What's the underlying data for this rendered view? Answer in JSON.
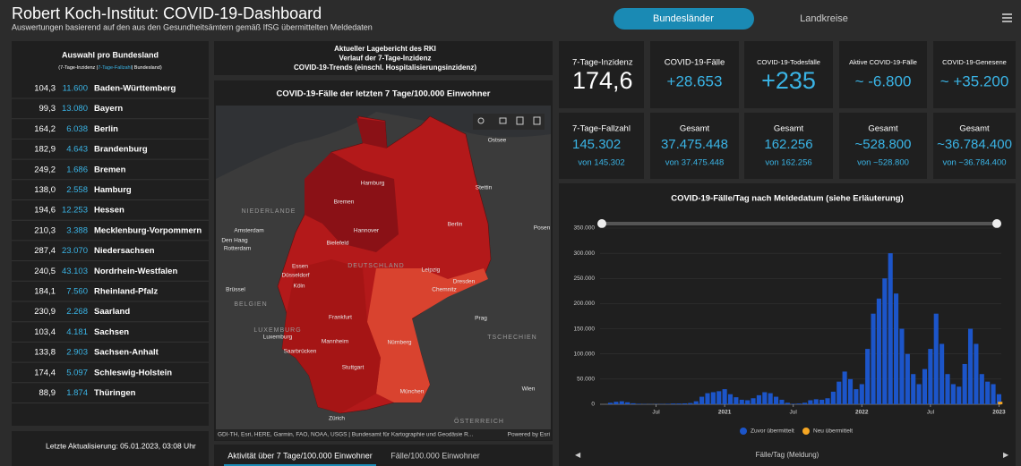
{
  "header": {
    "title": "Robert Koch-Institut: COVID-19-Dashboard",
    "subtitle": "Auswertungen basierend auf den aus den Gesundheitsämtern gemäß IfSG übermittelten Meldedaten",
    "tabs": [
      "Bundesländer",
      "Landkreise"
    ]
  },
  "states": {
    "title": "Auswahl pro Bundesland",
    "legend": [
      "(7-Tage-Inzidenz |",
      "7-Tage-Fallzahl",
      "| Bundesland)"
    ],
    "rows": [
      [
        "104,3",
        "11.600",
        "Baden-Württemberg"
      ],
      [
        "99,3",
        "13.080",
        "Bayern"
      ],
      [
        "164,2",
        "6.038",
        "Berlin"
      ],
      [
        "182,9",
        "4.643",
        "Brandenburg"
      ],
      [
        "249,2",
        "1.686",
        "Bremen"
      ],
      [
        "138,0",
        "2.558",
        "Hamburg"
      ],
      [
        "194,6",
        "12.253",
        "Hessen"
      ],
      [
        "210,3",
        "3.388",
        "Mecklenburg-Vorpommern"
      ],
      [
        "287,4",
        "23.070",
        "Niedersachsen"
      ],
      [
        "240,5",
        "43.103",
        "Nordrhein-Westfalen"
      ],
      [
        "184,1",
        "7.560",
        "Rheinland-Pfalz"
      ],
      [
        "230,9",
        "2.268",
        "Saarland"
      ],
      [
        "103,4",
        "4.181",
        "Sachsen"
      ],
      [
        "133,8",
        "2.903",
        "Sachsen-Anhalt"
      ],
      [
        "174,4",
        "5.097",
        "Schleswig-Holstein"
      ],
      [
        "88,9",
        "1.874",
        "Thüringen"
      ]
    ],
    "last_update": "Letzte Aktualisierung: 05.01.2023, 03:08 Uhr"
  },
  "links": [
    "Aktueller Lagebericht des RKI",
    "Verlauf der 7-Tage-Inzidenz",
    "COVID-19-Trends (einschl. Hospitalisierungsinzidenz)"
  ],
  "map": {
    "title": "COVID-19-Fälle der letzten 7 Tage/100.000 Einwohner",
    "labels": [
      "Ostsee",
      "Hamburg",
      "Stettin",
      "NIEDERLANDE",
      "Bremen",
      "Berlin",
      "Amsterdam",
      "Den Haag",
      "Rotterdam",
      "Hannover",
      "Posen",
      "Bielefeld",
      "DEUTSCHLAND",
      "Essen",
      "Düsseldorf",
      "Leipzig",
      "Köln",
      "Dresden",
      "Chemnitz",
      "Brüssel",
      "BELGIEN",
      "Prag",
      "Frankfurt",
      "LUXEMBURG",
      "Luxemburg",
      "TSCHECHIEN",
      "Mannheim",
      "Nürnberg",
      "Saarbrücken",
      "Stuttgart",
      "Wien",
      "München",
      "Zürich",
      "ÖSTERREICH"
    ],
    "attribution": "GDI-TH, Esri, HERE, Garmin, FAO, NOAA, USGS | Bundesamt für Kartographie und Geodäsie R...",
    "powered": "Powered by Esri",
    "tabs": [
      "Aktivität über 7 Tage/100.000 Einwohner",
      "Fälle/100.000 Einwohner"
    ]
  },
  "kpis": [
    {
      "label": "7-Tage-Inzidenz",
      "value": "174,6"
    },
    {
      "label": "COVID-19-Fälle",
      "value": "+28.653"
    },
    {
      "label": "COVID-19-Todesfälle",
      "value": "+235"
    },
    {
      "label": "Aktive COVID-19-Fälle",
      "value": "~ -6.800"
    },
    {
      "label": "COVID-19-Genesene",
      "value": "~ +35.200"
    },
    {
      "label": "7-Tage-Fallzahl",
      "value": "145.302",
      "sub": "von 145.302"
    },
    {
      "label": "Gesamt",
      "value": "37.475.448",
      "sub": "von 37.475.448"
    },
    {
      "label": "Gesamt",
      "value": "162.256",
      "sub": "von 162.256"
    },
    {
      "label": "Gesamt",
      "value": "~528.800",
      "sub": "von ~528.800"
    },
    {
      "label": "Gesamt",
      "value": "~36.784.400",
      "sub": "von ~36.784.400"
    }
  ],
  "chart_data": {
    "type": "bar",
    "title": "COVID-19-Fälle/Tag nach Meldedatum (siehe Erläuterung)",
    "x_label": "Fälle/Tag (Meldung)",
    "grid": true,
    "x": [
      2,
      2.5,
      3,
      3.5,
      4,
      4.5,
      5,
      5.5,
      6,
      6.5,
      7,
      7.5,
      8,
      8.5,
      9,
      9.5,
      10,
      10.5,
      11,
      11.5,
      12,
      12.5,
      13,
      13.5,
      14,
      14.5,
      15,
      15.5,
      16,
      16.5,
      17,
      17.5,
      18,
      18.5,
      19,
      19.5,
      20,
      20.5,
      21,
      21.5,
      22,
      22.5,
      23,
      23.5,
      24,
      24.5,
      25,
      25.5,
      26,
      26.5,
      27,
      27.5,
      28,
      28.5,
      29,
      29.5,
      30,
      30.5,
      31,
      31.5,
      32,
      32.5,
      33,
      33.5,
      34,
      34.5,
      35,
      35.5,
      36
    ],
    "xlim": [
      1.1,
      36.2
    ],
    "xticks": [
      {
        "value": 6,
        "label": "Jul"
      },
      {
        "value": 12,
        "label": "2021"
      },
      {
        "value": 18,
        "label": "Jul"
      },
      {
        "value": 24,
        "label": "2022"
      },
      {
        "value": 30,
        "label": "Jul"
      },
      {
        "value": 36,
        "label": "2023"
      }
    ],
    "ylim": [
      0,
      350000
    ],
    "yticks": [
      0,
      {
        "value": 50000,
        "label": "50.000"
      },
      {
        "value": 100000,
        "label": "100.000"
      },
      {
        "value": 150000,
        "label": "150.000"
      },
      {
        "value": 200000,
        "label": "200.000"
      },
      {
        "value": 250000,
        "label": "250.000"
      },
      {
        "value": 300000,
        "label": "300.000"
      },
      {
        "value": 350000,
        "label": "350.000"
      }
    ],
    "series": [
      {
        "name": "Zuvor übermittelt",
        "color": "#1c55c9",
        "values": [
          3000,
          5000,
          6000,
          4000,
          2000,
          1000,
          600,
          500,
          500,
          600,
          900,
          1500,
          1500,
          1800,
          2500,
          6000,
          15000,
          22000,
          24000,
          26000,
          30000,
          20000,
          14000,
          9000,
          8000,
          12000,
          18000,
          24000,
          22000,
          15000,
          9000,
          3000,
          1000,
          1500,
          3000,
          8000,
          10000,
          9000,
          12000,
          25000,
          45000,
          65000,
          50000,
          30000,
          40000,
          110000,
          180000,
          210000,
          250000,
          300000,
          220000,
          150000,
          100000,
          60000,
          40000,
          70000,
          110000,
          180000,
          120000,
          60000,
          40000,
          35000,
          80000,
          150000,
          120000,
          60000,
          45000,
          40000,
          20000
        ]
      },
      {
        "name": "Neu übermittelt",
        "color": "#f5a623",
        "x": [
          36.1
        ],
        "values": [
          5000
        ]
      }
    ]
  }
}
